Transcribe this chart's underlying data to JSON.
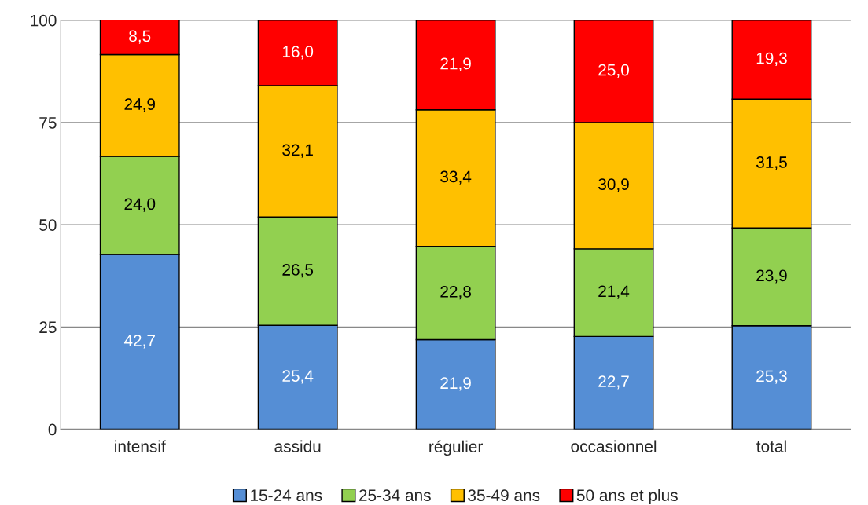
{
  "chart_data": {
    "type": "bar",
    "stacked": true,
    "categories": [
      "intensif",
      "assidu",
      "régulier",
      "occasionnel",
      "total"
    ],
    "series": [
      {
        "name": "15-24 ans",
        "color": "#558ed5",
        "values": [
          42.7,
          25.4,
          21.9,
          22.7,
          25.3
        ],
        "value_labels": [
          "42,7",
          "25,4",
          "21,9",
          "22,7",
          "25,3"
        ]
      },
      {
        "name": "25-34 ans",
        "color": "#92d050",
        "values": [
          24.0,
          26.5,
          22.8,
          21.4,
          23.9
        ],
        "value_labels": [
          "24,0",
          "26,5",
          "22,8",
          "21,4",
          "23,9"
        ]
      },
      {
        "name": "35-49 ans",
        "color": "#ffc000",
        "values": [
          24.9,
          32.1,
          33.4,
          30.9,
          31.5
        ],
        "value_labels": [
          "24,9",
          "32,1",
          "33,4",
          "30,9",
          "31,5"
        ]
      },
      {
        "name": "50 ans et plus",
        "color": "#ff0000",
        "values": [
          8.5,
          16.0,
          21.9,
          25.0,
          19.3
        ],
        "value_labels": [
          "8,5",
          "16,0",
          "21,9",
          "25,0",
          "19,3"
        ]
      }
    ],
    "ylim": [
      0,
      100
    ],
    "yticks": [
      0,
      25,
      50,
      75,
      100
    ],
    "grid": "y",
    "legend": "bottom"
  }
}
